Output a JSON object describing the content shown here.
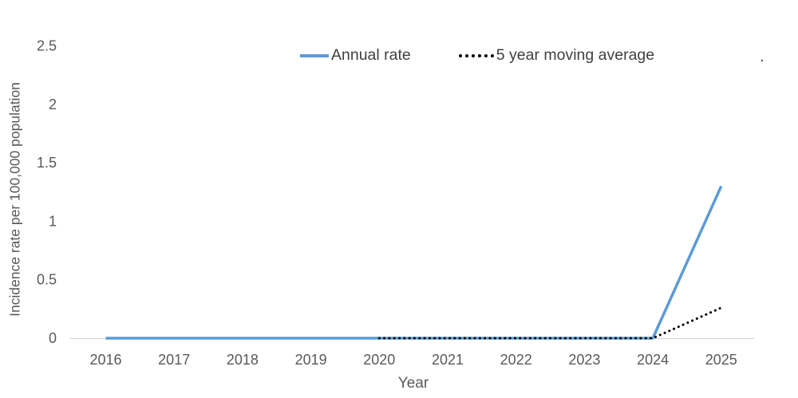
{
  "chart_data": {
    "type": "line",
    "title": "",
    "xlabel": "Year",
    "ylabel": "Incidence rate per 100,000 population",
    "x": [
      2016,
      2017,
      2018,
      2019,
      2020,
      2021,
      2022,
      2023,
      2024,
      2025
    ],
    "ylim": [
      0,
      2.5
    ],
    "ytick_values": [
      0,
      0.5,
      1,
      1.5,
      2,
      2.5
    ],
    "grid": false,
    "legend_position": "top-center",
    "series": [
      {
        "name": "Annual rate",
        "style": "solid",
        "color": "#5B9BD5",
        "values": [
          0,
          0,
          0,
          0,
          0,
          0,
          0,
          0,
          0,
          1.3
        ]
      },
      {
        "name": "5 year moving average",
        "style": "dotted",
        "color": "#000000",
        "values": [
          null,
          null,
          null,
          null,
          0,
          0,
          0,
          0,
          0,
          0.26
        ]
      }
    ],
    "stray_text": "."
  },
  "colors": {
    "axis_line": "#d6d6d6",
    "tick_text": "#595959",
    "title_text": "#595959",
    "legend_text": "#404040"
  }
}
